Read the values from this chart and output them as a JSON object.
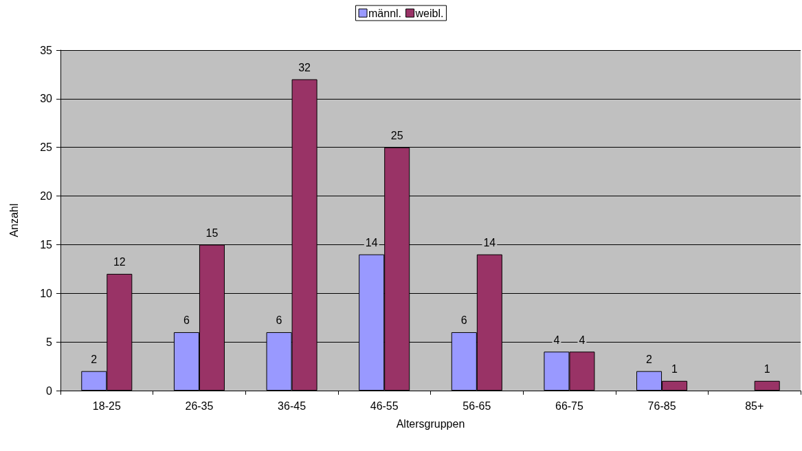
{
  "chart_data": {
    "type": "bar",
    "xlabel": "Altersgruppen",
    "ylabel": "Anzahl",
    "categories": [
      "18-25",
      "26-35",
      "36-45",
      "46-55",
      "56-65",
      "66-75",
      "76-85",
      "85+"
    ],
    "series": [
      {
        "name": "männl.",
        "color": "#9999ff",
        "values": [
          2,
          6,
          6,
          14,
          6,
          4,
          2,
          null
        ]
      },
      {
        "name": "weibl.",
        "color": "#993366",
        "values": [
          12,
          15,
          32,
          25,
          14,
          4,
          1,
          1
        ]
      }
    ],
    "ylim": [
      0,
      35
    ],
    "yticks": [
      0,
      5,
      10,
      15,
      20,
      25,
      30,
      35
    ],
    "grid": "y",
    "legend": "top",
    "data_labels": true
  }
}
